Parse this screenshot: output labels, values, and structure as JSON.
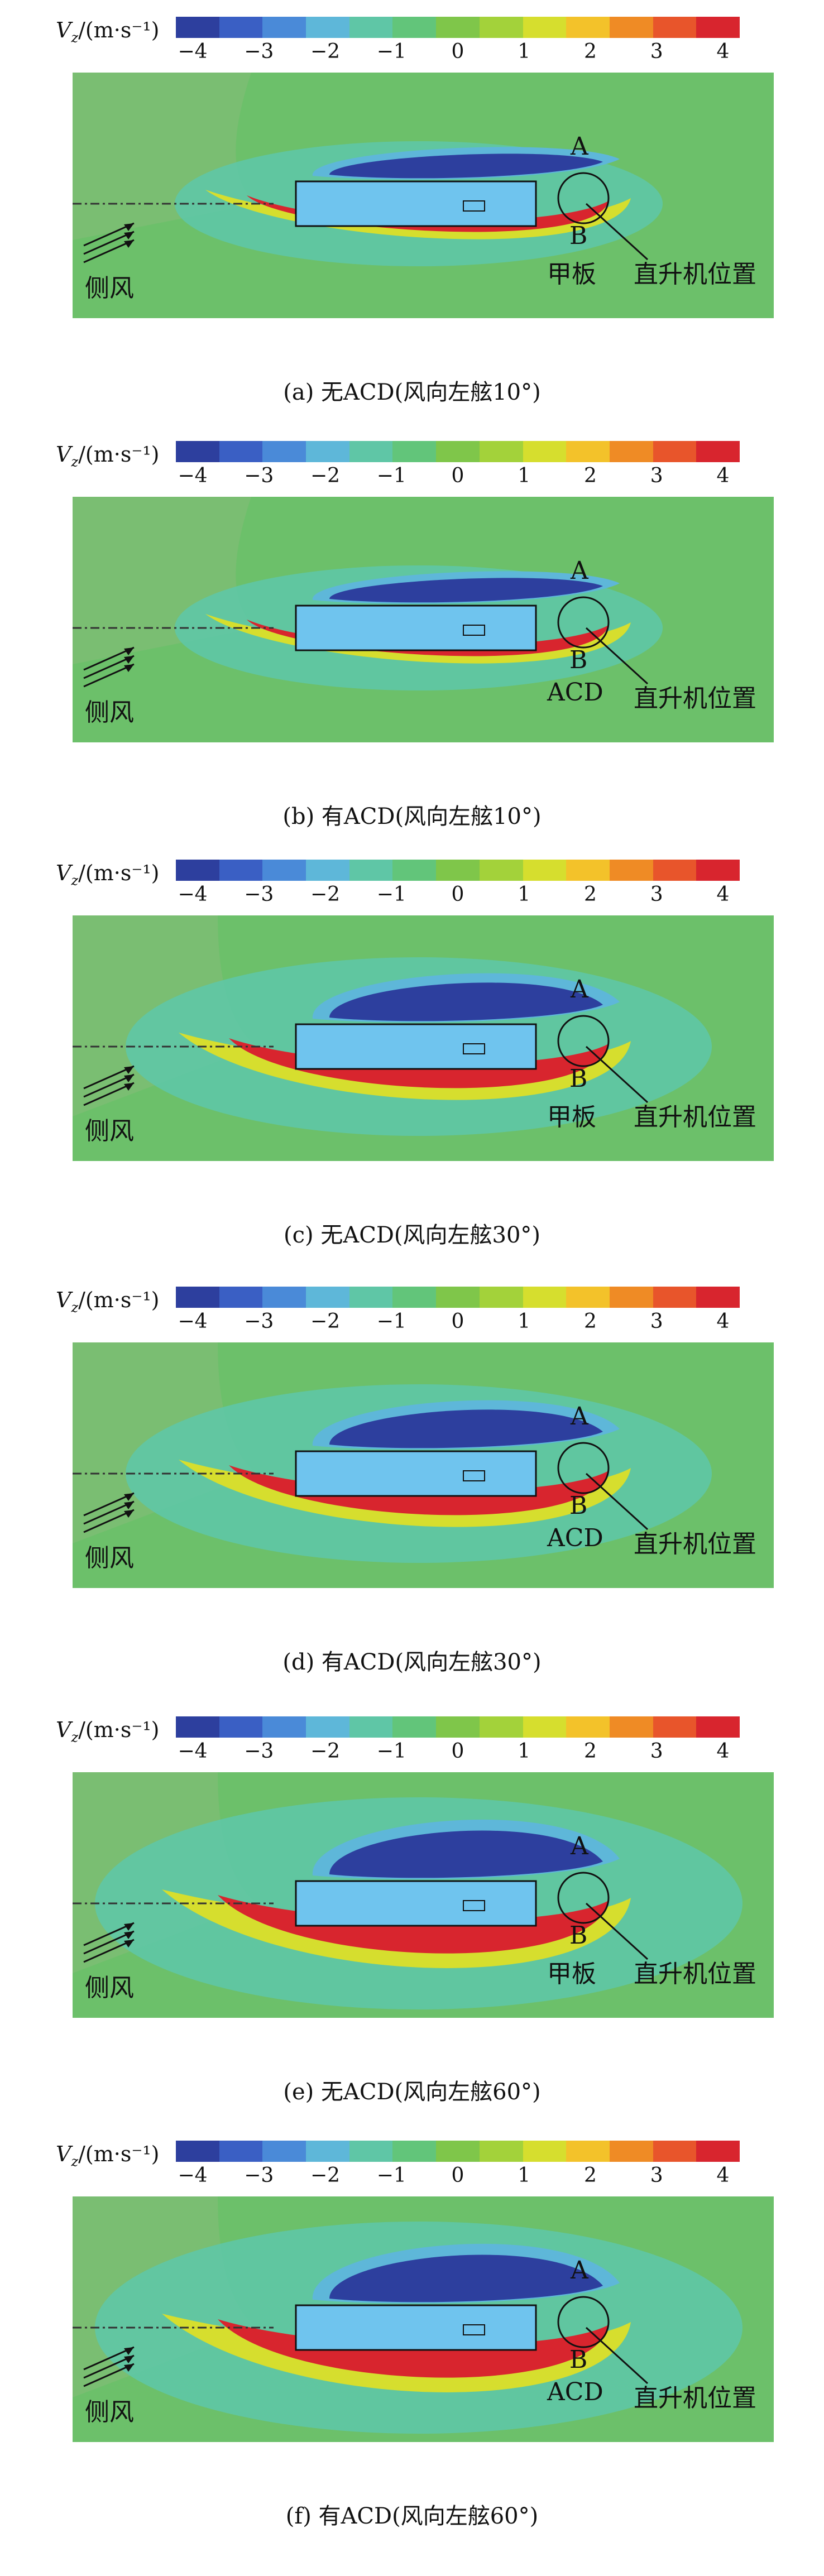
{
  "colorbar": {
    "label_main": "V",
    "label_sub": "z",
    "label_unit": "/(m·s⁻¹)",
    "ticks": [
      "−4",
      "−3",
      "−2",
      "−1",
      "0",
      "1",
      "2",
      "3",
      "4"
    ],
    "colors": [
      "#2d3f9e",
      "#3a5fc4",
      "#4a8ad8",
      "#5eb7d9",
      "#5fc6a6",
      "#62c57a",
      "#7fc64a",
      "#a3d23a",
      "#d6de2e",
      "#f3c22a",
      "#ef8b25",
      "#e8552b",
      "#d8252e"
    ]
  },
  "labels": {
    "point_a": "A",
    "point_b": "B",
    "crosswind": "侧风",
    "deck": "甲板",
    "helicopter_position": "直升机位置",
    "acd": "ACD"
  },
  "panels": [
    {
      "caption": "(a) 无ACD(风向左舷10°)",
      "marker": "甲板",
      "angle": 10,
      "acd": false
    },
    {
      "caption": "(b) 有ACD(风向左舷10°)",
      "marker": "ACD",
      "angle": 10,
      "acd": true
    },
    {
      "caption": "(c) 无ACD(风向左舷30°)",
      "marker": "甲板",
      "angle": 30,
      "acd": false
    },
    {
      "caption": "(d) 有ACD(风向左舷30°)",
      "marker": "ACD",
      "angle": 30,
      "acd": true
    },
    {
      "caption": "(e) 无ACD(风向左舷60°)",
      "marker": "甲板",
      "angle": 60,
      "acd": false
    },
    {
      "caption": "(f) 有ACD(风向左舷60°)",
      "marker": "ACD",
      "angle": 60,
      "acd": true
    }
  ]
}
